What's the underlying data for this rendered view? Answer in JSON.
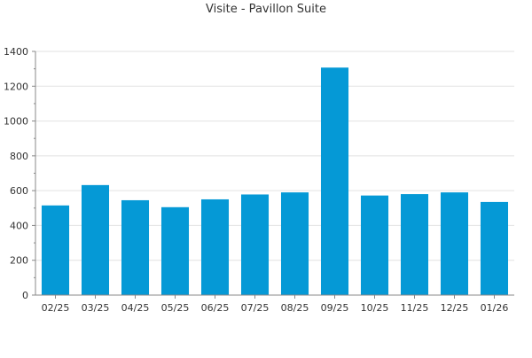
{
  "chart_data": {
    "type": "bar",
    "title": "Visite - Pavillon Suite",
    "xlabel": "",
    "ylabel": "",
    "categories": [
      "02/25",
      "03/25",
      "04/25",
      "05/25",
      "06/25",
      "07/25",
      "08/25",
      "09/25",
      "10/25",
      "11/25",
      "12/25",
      "01/26"
    ],
    "values": [
      515,
      632,
      545,
      505,
      550,
      578,
      590,
      1307,
      572,
      580,
      590,
      535
    ],
    "ylim": [
      0,
      1400
    ],
    "yticks": [
      0,
      200,
      400,
      600,
      800,
      1000,
      1200,
      1400
    ],
    "grid": true,
    "legend": "none",
    "bar_color": "#0599d6",
    "grid_color": "#e2e2e2",
    "axis_color": "#888888"
  }
}
